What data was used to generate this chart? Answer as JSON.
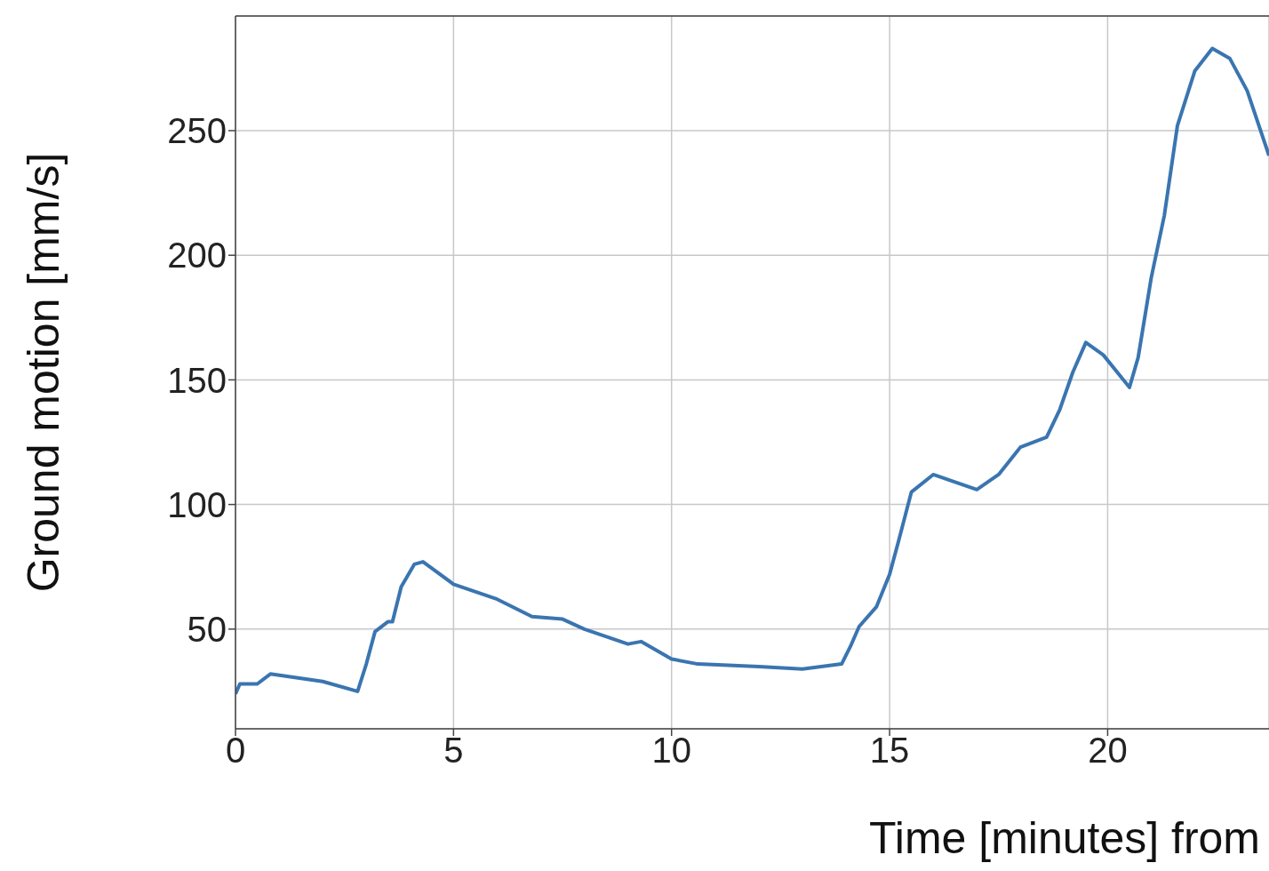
{
  "chart_data": {
    "type": "line",
    "xlabel": "Time [minutes] from",
    "ylabel": "Ground motion [mm/s]",
    "x": [
      0,
      0.1,
      0.5,
      0.8,
      2.0,
      2.8,
      3.0,
      3.2,
      3.5,
      3.6,
      3.8,
      4.1,
      4.3,
      5.0,
      6.0,
      6.8,
      7.5,
      8.0,
      9.0,
      9.3,
      10.0,
      10.6,
      12.0,
      13.0,
      13.9,
      14.1,
      14.3,
      14.7,
      15.0,
      15.2,
      15.5,
      16.0,
      16.5,
      17.0,
      17.5,
      18.0,
      18.6,
      18.9,
      19.2,
      19.5,
      19.9,
      20.5,
      20.7,
      21.0,
      21.3,
      21.6,
      22.0,
      22.4,
      22.8,
      23.2,
      23.7
    ],
    "series": [
      {
        "color": "#3a75b0",
        "values": [
          24,
          28,
          28,
          32,
          29,
          25,
          36,
          49,
          53,
          53,
          67,
          76,
          77,
          68,
          62,
          55,
          54,
          50,
          44,
          45,
          38,
          36,
          35,
          34,
          36,
          43,
          51,
          59,
          72,
          85,
          105,
          112,
          109,
          106,
          112,
          123,
          127,
          138,
          153,
          165,
          160,
          147,
          159,
          191,
          216,
          252,
          274,
          283,
          279,
          266,
          240
        ]
      }
    ],
    "xlim": [
      0,
      23.7
    ],
    "ylim": [
      10,
      296
    ],
    "xticks": [
      0,
      5,
      10,
      15,
      20
    ],
    "yticks": [
      50,
      100,
      150,
      200,
      250
    ],
    "grid": true,
    "marker": "none",
    "line_style": "solid"
  }
}
